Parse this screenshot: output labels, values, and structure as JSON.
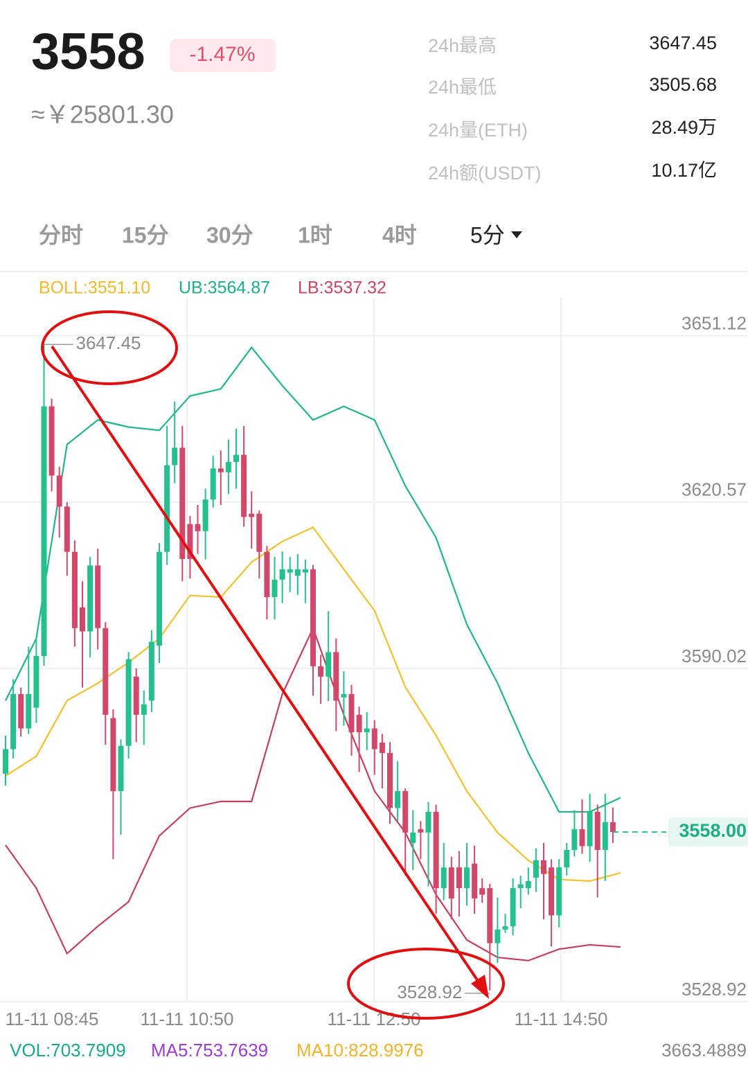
{
  "header": {
    "price": "3558",
    "change": "-1.47%",
    "cny": "≈￥25801.30",
    "stats": [
      {
        "label": "24h最高",
        "value": "3647.45"
      },
      {
        "label": "24h最低",
        "value": "3505.68"
      },
      {
        "label": "24h量(ETH)",
        "value": "28.49万"
      },
      {
        "label": "24h额(USDT)",
        "value": "10.17亿"
      }
    ]
  },
  "tabs": [
    "分时",
    "15分",
    "30分",
    "1时",
    "4时",
    "5分"
  ],
  "indicators": {
    "boll": "BOLL:3551.10",
    "ub": "UB:3564.87",
    "lb": "LB:3537.32"
  },
  "volume": {
    "vol": "VOL:703.7909",
    "ma5": "MA5:753.7639",
    "ma10": "MA10:828.9976",
    "max": "3663.4889"
  },
  "chart_data": {
    "type": "candlestick",
    "up_color": "#26bf8e",
    "down_color": "#d2486a",
    "ylim": [
      3527,
      3656
    ],
    "yticks": [
      3651.12,
      3620.57,
      3590.02,
      3528.92
    ],
    "grid": true,
    "x_labels": [
      "11-11 08:45",
      "11-11 10:50",
      "11-11 12:50",
      "11-11 14:50"
    ],
    "current_price": 3558,
    "current_price_label": "3558.00",
    "candles": [
      [
        3568.7,
        3575.7,
        3566.5,
        3573.2
      ],
      [
        3573.2,
        3586.0,
        3571.5,
        3583.3
      ],
      [
        3583.3,
        3584.5,
        3575.5,
        3577.0
      ],
      [
        3577.0,
        3592.0,
        3576.0,
        3583.3
      ],
      [
        3580.8,
        3593.5,
        3578.0,
        3590.3
      ],
      [
        3590.3,
        3647.45,
        3588.5,
        3636.1
      ],
      [
        3636.1,
        3637.5,
        3620.5,
        3623.4
      ],
      [
        3623.4,
        3625.0,
        3612.0,
        3617.7
      ],
      [
        3617.7,
        3618.5,
        3605.0,
        3609.4
      ],
      [
        3609.4,
        3611.5,
        3592.0,
        3595.4
      ],
      [
        3599.2,
        3604.0,
        3584.5,
        3594.8
      ],
      [
        3594.8,
        3608.5,
        3590.0,
        3606.9
      ],
      [
        3606.9,
        3610.0,
        3591.5,
        3595.4
      ],
      [
        3595.4,
        3596.5,
        3574.0,
        3579.5
      ],
      [
        3578.9,
        3580.5,
        3553.0,
        3565.5
      ],
      [
        3565.5,
        3575.0,
        3557.5,
        3573.8
      ],
      [
        3573.8,
        3591.0,
        3571.5,
        3589.7
      ],
      [
        3586.5,
        3588.0,
        3574.5,
        3579.5
      ],
      [
        3579.5,
        3584.0,
        3574.0,
        3581.4
      ],
      [
        3582.1,
        3595.0,
        3580.0,
        3592.9
      ],
      [
        3592.2,
        3611.0,
        3589.0,
        3609.4
      ],
      [
        3609.4,
        3632.5,
        3607.0,
        3625.3
      ],
      [
        3625.3,
        3637.0,
        3622.0,
        3628.5
      ],
      [
        3628.5,
        3632.5,
        3604.0,
        3608.1
      ],
      [
        3614.5,
        3616.0,
        3604.5,
        3608.1
      ],
      [
        3614.5,
        3618.0,
        3609.0,
        3613.2
      ],
      [
        3613.2,
        3621.0,
        3608.0,
        3619.0
      ],
      [
        3619.0,
        3627.0,
        3617.5,
        3624.7
      ],
      [
        3624.7,
        3628.0,
        3618.0,
        3624.0
      ],
      [
        3624.0,
        3630.0,
        3620.0,
        3625.9
      ],
      [
        3625.9,
        3632.0,
        3621.0,
        3627.2
      ],
      [
        3627.2,
        3632.5,
        3614.0,
        3615.8
      ],
      [
        3616.4,
        3620.5,
        3610.0,
        3615.8
      ],
      [
        3616.4,
        3617.0,
        3604.5,
        3609.4
      ],
      [
        3609.4,
        3610.5,
        3597.0,
        3601.1
      ],
      [
        3601.1,
        3608.5,
        3597.0,
        3604.3
      ],
      [
        3604.3,
        3609.5,
        3600.0,
        3606.2
      ],
      [
        3605.6,
        3608.5,
        3602.0,
        3606.2
      ],
      [
        3605.0,
        3609.0,
        3601.5,
        3606.2
      ],
      [
        3605.6,
        3608.0,
        3600.0,
        3606.2
      ],
      [
        3606.2,
        3607.0,
        3583.0,
        3588.4
      ],
      [
        3588.4,
        3590.5,
        3581.5,
        3586.5
      ],
      [
        3586.5,
        3598.5,
        3582.0,
        3591.0
      ],
      [
        3591.0,
        3593.5,
        3576.5,
        3582.1
      ],
      [
        3582.7,
        3587.5,
        3577.5,
        3583.3
      ],
      [
        3583.3,
        3585.0,
        3572.0,
        3576.3
      ],
      [
        3579.5,
        3581.0,
        3569.0,
        3576.3
      ],
      [
        3576.3,
        3580.0,
        3573.0,
        3577.0
      ],
      [
        3577.0,
        3578.5,
        3568.5,
        3573.2
      ],
      [
        3574.4,
        3576.0,
        3566.0,
        3572.5
      ],
      [
        3572.5,
        3574.5,
        3559.5,
        3562.4
      ],
      [
        3562.4,
        3571.0,
        3560.0,
        3565.5
      ],
      [
        3565.5,
        3566.0,
        3550.0,
        3557.9
      ],
      [
        3556.0,
        3562.0,
        3551.0,
        3557.9
      ],
      [
        3558.5,
        3560.0,
        3553.0,
        3557.9
      ],
      [
        3557.9,
        3563.5,
        3548.0,
        3561.7
      ],
      [
        3561.7,
        3563.0,
        3543.0,
        3547.7
      ],
      [
        3547.7,
        3556.0,
        3545.5,
        3551.5
      ],
      [
        3551.5,
        3553.5,
        3542.0,
        3545.8
      ],
      [
        3551.5,
        3554.5,
        3542.5,
        3547.7
      ],
      [
        3547.7,
        3556.0,
        3544.5,
        3551.5
      ],
      [
        3552.2,
        3555.5,
        3543.0,
        3545.8
      ],
      [
        3547.7,
        3549.5,
        3545.0,
        3546.5
      ],
      [
        3547.7,
        3548.5,
        3528.92,
        3537.6
      ],
      [
        3537.6,
        3546.0,
        3534.0,
        3540.1
      ],
      [
        3540.1,
        3543.0,
        3539.5,
        3540.7
      ],
      [
        3540.7,
        3549.5,
        3539.0,
        3547.7
      ],
      [
        3547.7,
        3550.0,
        3544.0,
        3548.4
      ],
      [
        3547.7,
        3551.5,
        3546.5,
        3549.0
      ],
      [
        3549.6,
        3555.0,
        3547.0,
        3552.8
      ],
      [
        3552.8,
        3556.0,
        3542.0,
        3550.3
      ],
      [
        3551.5,
        3553.0,
        3537.0,
        3542.7
      ],
      [
        3542.7,
        3553.0,
        3540.5,
        3551.5
      ],
      [
        3551.5,
        3556.0,
        3550.0,
        3554.7
      ],
      [
        3554.7,
        3562.0,
        3553.5,
        3558.5
      ],
      [
        3558.5,
        3564.0,
        3554.0,
        3555.4
      ],
      [
        3555.4,
        3565.0,
        3552.5,
        3561.7
      ],
      [
        3561.7,
        3563.0,
        3546.0,
        3554.7
      ],
      [
        3554.7,
        3565.0,
        3549.0,
        3559.8
      ],
      [
        3559.8,
        3562.5,
        3556.0,
        3558.0
      ]
    ],
    "bands": [
      {
        "name": "UB",
        "color": "#22b48a",
        "values": [
          3582.1,
          3593.5,
          3629.1,
          3633.6,
          3632.3,
          3631.7,
          3638.0,
          3639.3,
          3646.9,
          3639.9,
          3633.6,
          3636.1,
          3633.6,
          3621.5,
          3612.0,
          3596.1,
          3585.3,
          3572.5,
          3561.7,
          3561.7,
          3564.3
        ]
      },
      {
        "name": "BOLL",
        "color": "#f2c12e",
        "values": [
          3568.3,
          3571.9,
          3582.1,
          3585.3,
          3589.1,
          3593.5,
          3601.4,
          3601.1,
          3607.5,
          3611.3,
          3613.9,
          3606.2,
          3598.6,
          3584.6,
          3575.7,
          3565.5,
          3557.9,
          3552.8,
          3549.3,
          3549.0,
          3550.5
        ]
      },
      {
        "name": "LB",
        "color": "#c4405f",
        "values": [
          3555.6,
          3547.7,
          3535.7,
          3540.7,
          3545.2,
          3557.3,
          3562.4,
          3563.6,
          3563.6,
          3583.3,
          3595.4,
          3579.5,
          3565.5,
          3557.9,
          3546.5,
          3538.2,
          3535.0,
          3534.4,
          3536.5,
          3537.3,
          3536.9
        ]
      }
    ]
  }
}
